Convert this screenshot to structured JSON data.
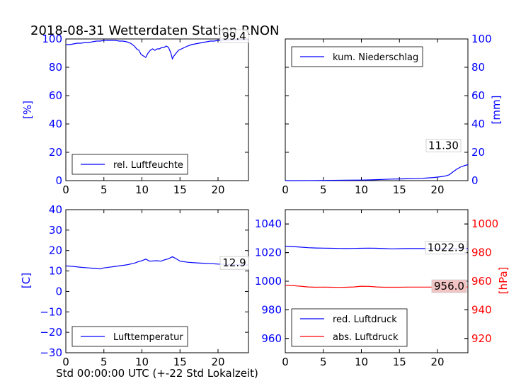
{
  "figure": {
    "title": "2018-08-31 Wetterdaten Station RNON",
    "xlabel_bottom": "Std 00:00:00 UTC (+-22 Std Lokalzeit)"
  },
  "colors": {
    "blue": "#0000ff",
    "red": "#ff0000",
    "black": "#000000"
  },
  "chart_data": [
    {
      "type": "line",
      "panel": "top-left",
      "ylabel": "[%]",
      "xlim": [
        0,
        24
      ],
      "ylim": [
        0,
        100
      ],
      "xticks": [
        "0",
        "5",
        "10",
        "15",
        "20"
      ],
      "yticks": [
        "0",
        "20",
        "40",
        "60",
        "80",
        "100"
      ],
      "legend_placement": "lower-left",
      "last_value_label": "99.4",
      "series": [
        {
          "name": "rel. Luftfeuchte",
          "color": "#0000ff",
          "x": [
            0,
            0.5,
            1,
            1.5,
            2,
            2.5,
            3,
            3.5,
            4,
            4.5,
            5,
            5.5,
            6,
            6.5,
            7,
            7.5,
            8,
            8.5,
            9,
            9.3,
            9.6,
            9.9,
            10.2,
            10.5,
            10.8,
            11.1,
            11.4,
            11.7,
            12,
            12.3,
            12.6,
            12.9,
            13.2,
            13.5,
            13.8,
            14.0,
            14.2,
            14.5,
            14.8,
            15.2,
            15.6,
            16,
            16.5,
            17,
            17.5,
            18,
            18.5,
            19,
            19.5,
            20,
            20.5,
            21,
            21.5,
            22,
            22.5,
            23,
            23.5,
            24
          ],
          "y": [
            96,
            96,
            96.5,
            97,
            97,
            97.5,
            97.5,
            98,
            98.5,
            98.5,
            99,
            99,
            99,
            99,
            98.5,
            98.5,
            98,
            97,
            95,
            93,
            92,
            89,
            88,
            87,
            90,
            92,
            93,
            92,
            93,
            93,
            94,
            94,
            95,
            94,
            90,
            86,
            88,
            90,
            92,
            93,
            94,
            95,
            96,
            96.5,
            97,
            97.5,
            98,
            98.5,
            98.5,
            99,
            99,
            99.2,
            99.3,
            99.3,
            99.4,
            99.4,
            99.4,
            99.4
          ]
        }
      ]
    },
    {
      "type": "line",
      "panel": "top-right",
      "ylabel": "[mm]",
      "xlim": [
        0,
        24
      ],
      "ylim": [
        0,
        100
      ],
      "xticks": [
        "0",
        "5",
        "10",
        "15",
        "20"
      ],
      "yticks": [
        "0",
        "20",
        "40",
        "60",
        "80",
        "100"
      ],
      "legend_placement": "upper-left",
      "last_value_label": "11.30",
      "series": [
        {
          "name": "kum. Niederschlag",
          "color": "#0000ff",
          "x": [
            0,
            2,
            4,
            6,
            8,
            10,
            11,
            12,
            13,
            14,
            15,
            16,
            17,
            18,
            18.5,
            19,
            19.5,
            20,
            20.5,
            21,
            21.5,
            22,
            22.5,
            23,
            23.5,
            24
          ],
          "y": [
            0,
            0,
            0.1,
            0.2,
            0.3,
            0.4,
            0.5,
            0.7,
            0.9,
            1.1,
            1.2,
            1.3,
            1.4,
            1.6,
            1.8,
            2.0,
            2.2,
            2.5,
            2.8,
            3.2,
            4.0,
            6.0,
            8.0,
            9.5,
            10.5,
            11.3
          ]
        }
      ]
    },
    {
      "type": "line",
      "panel": "bottom-left",
      "ylabel": "[C]",
      "xlim": [
        0,
        24
      ],
      "ylim": [
        -30,
        40
      ],
      "xticks": [
        "0",
        "5",
        "10",
        "15",
        "20"
      ],
      "yticks": [
        "−30",
        "−20",
        "−10",
        "0",
        "10",
        "20",
        "30",
        "40"
      ],
      "legend_placement": "lower-left",
      "last_value_label": "12.9",
      "series": [
        {
          "name": "Lufttemperatur",
          "color": "#0000ff",
          "x": [
            0,
            1,
            2,
            3,
            4,
            4.5,
            5,
            6,
            7,
            8,
            9,
            9.5,
            10,
            10.5,
            11,
            11.5,
            12,
            12.5,
            13,
            13.5,
            14,
            14.5,
            15,
            16,
            17,
            18,
            19,
            20,
            21,
            22,
            23,
            24
          ],
          "y": [
            12.5,
            12.2,
            11.8,
            11.5,
            11.2,
            11.0,
            11.5,
            12.0,
            12.5,
            13.0,
            13.8,
            14.5,
            15.0,
            15.8,
            14.8,
            14.9,
            15.0,
            14.8,
            15.5,
            16.0,
            17.0,
            16.0,
            14.8,
            14.3,
            14.0,
            13.8,
            13.6,
            13.4,
            13.3,
            13.1,
            13.0,
            12.9
          ]
        }
      ]
    },
    {
      "type": "line",
      "panel": "bottom-right",
      "ylabel": "[hPa]",
      "xlim": [
        0,
        24
      ],
      "ylim_left": [
        950,
        1050
      ],
      "ylim_right": [
        910,
        1010
      ],
      "xticks": [
        "0",
        "5",
        "10",
        "15",
        "20"
      ],
      "yticks_left": [
        "960",
        "980",
        "1000",
        "1020",
        "1040"
      ],
      "yticks_right": [
        "920",
        "940",
        "960",
        "980",
        "1000"
      ],
      "legend_placement": "lower-left",
      "last_value_labels": [
        "1022.9",
        "956.0"
      ],
      "series": [
        {
          "name": "red. Luftdruck",
          "color": "#0000ff",
          "axis": "left",
          "x": [
            0,
            1,
            2,
            3,
            4,
            5,
            6,
            7,
            8,
            9,
            10,
            11,
            12,
            13,
            14,
            15,
            16,
            17,
            18,
            19,
            20,
            21,
            22,
            23,
            24
          ],
          "y": [
            1024.5,
            1024.2,
            1023.8,
            1023.4,
            1023.2,
            1023.1,
            1023.0,
            1022.9,
            1022.8,
            1022.9,
            1023.0,
            1023.1,
            1023.0,
            1022.8,
            1022.6,
            1022.7,
            1022.8,
            1022.8,
            1022.8,
            1022.7,
            1022.8,
            1022.8,
            1022.9,
            1022.9,
            1022.9
          ]
        },
        {
          "name": "abs. Luftdruck",
          "color": "#ff0000",
          "axis": "right",
          "x": [
            0,
            1,
            2,
            3,
            4,
            5,
            6,
            7,
            8,
            9,
            10,
            11,
            12,
            13,
            14,
            15,
            16,
            17,
            18,
            19,
            20,
            21,
            22,
            23,
            24
          ],
          "y": [
            957.2,
            957.0,
            956.5,
            956.0,
            955.8,
            955.9,
            955.8,
            955.7,
            955.8,
            956.0,
            956.5,
            956.4,
            956.0,
            955.8,
            955.8,
            955.8,
            955.9,
            955.9,
            955.9,
            955.9,
            956.0,
            956.0,
            956.0,
            956.0,
            956.0
          ]
        }
      ]
    }
  ]
}
